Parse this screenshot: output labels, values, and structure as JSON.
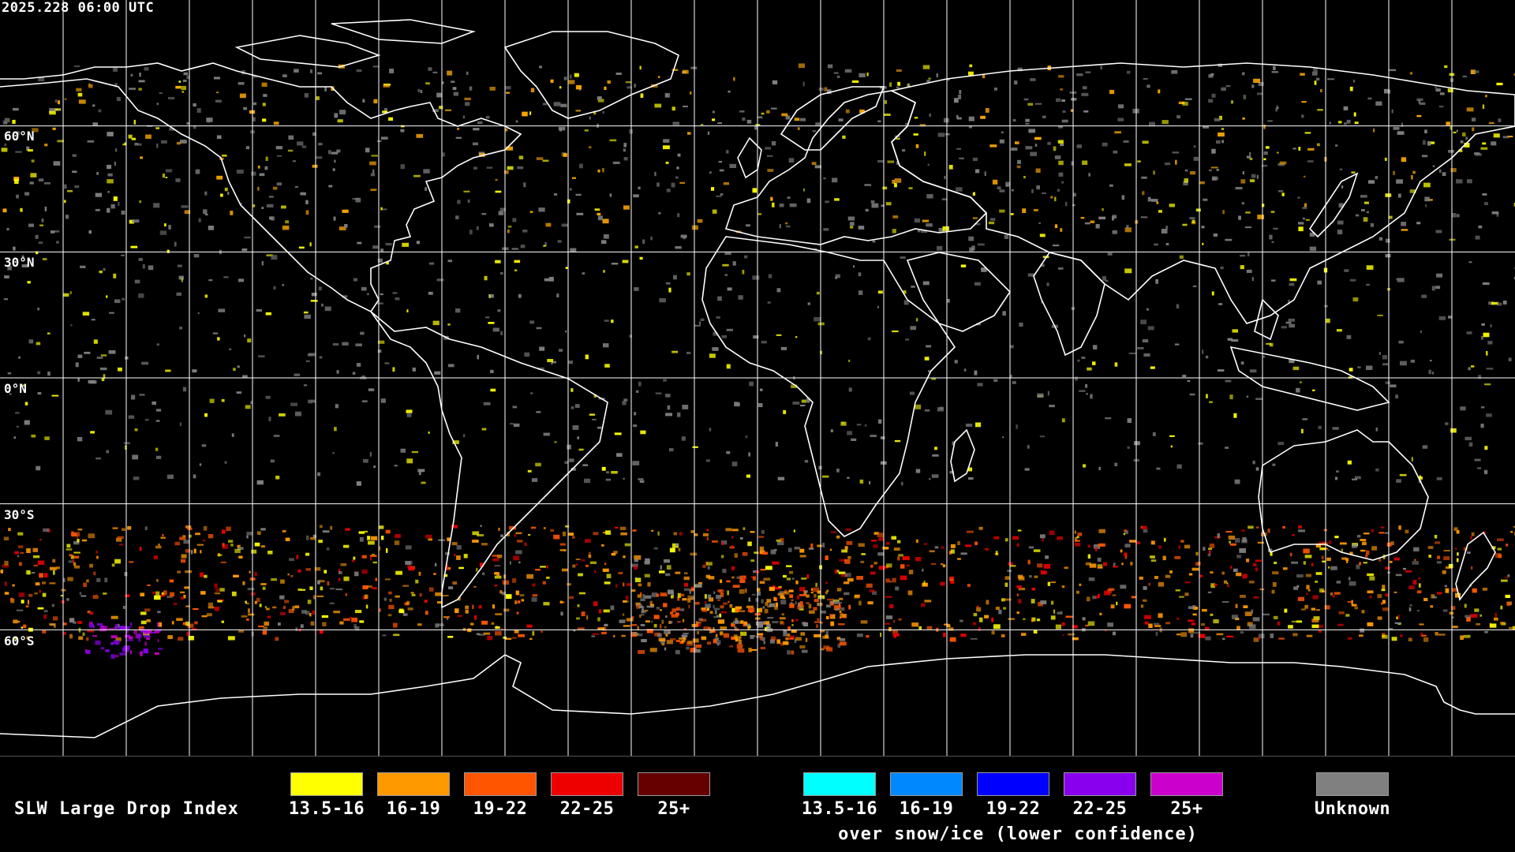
{
  "header": {
    "timestamp": "2025.228 06:00 UTC"
  },
  "map": {
    "type": "equirectangular world map",
    "latitude_labels": [
      "60°N",
      "30°N",
      "0°N",
      "30°S",
      "60°S"
    ],
    "latitude_values": [
      60,
      30,
      0,
      -30,
      -60
    ],
    "longitude_gridlines": [
      -165,
      -150,
      -135,
      -120,
      -105,
      -90,
      -75,
      -60,
      -45,
      -30,
      -15,
      0,
      15,
      30,
      45,
      60,
      75,
      90,
      105,
      120,
      135,
      150,
      165
    ],
    "colors": {
      "background": "#000000",
      "coastline": "#ffffff",
      "gridline": "#ffffff"
    }
  },
  "legend": {
    "title": "SLW Large Drop Index",
    "standard": [
      {
        "label": "13.5-16",
        "color": "#ffff00"
      },
      {
        "label": "16-19",
        "color": "#ff9900"
      },
      {
        "label": "19-22",
        "color": "#ff5500"
      },
      {
        "label": "22-25",
        "color": "#ee0000"
      },
      {
        "label": "25+",
        "color": "#660000"
      }
    ],
    "snow_ice": [
      {
        "label": "13.5-16",
        "color": "#00ffff"
      },
      {
        "label": "16-19",
        "color": "#0088ff"
      },
      {
        "label": "19-22",
        "color": "#0000ff"
      },
      {
        "label": "22-25",
        "color": "#8800ee"
      },
      {
        "label": "25+",
        "color": "#cc00cc"
      }
    ],
    "snow_ice_caption": "over snow/ice (lower confidence)",
    "unknown": {
      "label": "Unknown",
      "color": "#808080"
    }
  }
}
